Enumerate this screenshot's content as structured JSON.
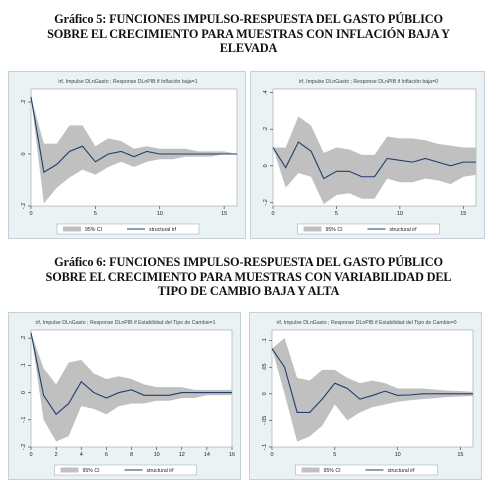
{
  "figure5": {
    "title_lines": [
      "Gráfico 5: FUNCIONES IMPULSO-RESPUESTA DEL GASTO PÚBLICO",
      "SOBRE EL CRECIMIENTO PARA MUESTRAS CON INFLACIÓN BAJA Y",
      "ELEVADA"
    ]
  },
  "figure6": {
    "title_lines": [
      "Gráfico 6: FUNCIONES IMPULSO-RESPUESTA DEL GASTO PÚBLICO",
      "SOBRE EL CRECIMIENTO PARA MUESTRAS CON VARIABILIDAD DEL",
      "TIPO DE CAMBIO BAJA Y ALTA"
    ]
  },
  "legend": {
    "ci_label": "95% CI",
    "irf_label": "structural irf"
  },
  "colors": {
    "panel_bg": "#eaf2f3",
    "plot_bg": "#ffffff",
    "band": "#c0c0c0",
    "line": "#1f3f6e"
  },
  "chart_data": [
    {
      "id": "p1",
      "type": "area",
      "title": "irf, Impulse DLnGasto ; Response DLnPIB if Inflación baja=1",
      "xlim": [
        0,
        16
      ],
      "ylim": [
        -0.2,
        0.25
      ],
      "xticks": [
        0,
        5,
        10,
        15
      ],
      "xtick_labels": [
        "0",
        "5",
        "10",
        "15"
      ],
      "yticks": [
        -0.2,
        0,
        0.2
      ],
      "ytick_labels": [
        "-.2",
        "0",
        ".2"
      ],
      "x": [
        0,
        1,
        2,
        3,
        4,
        5,
        6,
        7,
        8,
        9,
        10,
        11,
        12,
        13,
        14,
        15,
        16
      ],
      "series": [
        {
          "name": "95% CI",
          "lower": [
            0.22,
            -0.19,
            -0.13,
            -0.09,
            -0.06,
            -0.08,
            -0.05,
            -0.03,
            -0.05,
            -0.03,
            -0.02,
            -0.02,
            -0.01,
            -0.01,
            -0.01,
            0.0,
            0.0
          ],
          "upper": [
            0.22,
            0.04,
            0.04,
            0.11,
            0.11,
            0.03,
            0.06,
            0.05,
            0.02,
            0.03,
            0.02,
            0.02,
            0.02,
            0.01,
            0.01,
            0.01,
            0.0
          ]
        },
        {
          "name": "structural irf",
          "values": [
            0.22,
            -0.07,
            -0.04,
            0.01,
            0.03,
            -0.03,
            0.0,
            0.01,
            -0.01,
            0.01,
            0.0,
            0.0,
            0.0,
            0.0,
            0.0,
            0.0,
            0.0
          ]
        }
      ]
    },
    {
      "id": "p2",
      "type": "area",
      "title": "irf, Impulse DLnGasto ; Response DLnPIB if Inflación baja=0",
      "xlim": [
        0,
        16
      ],
      "ylim": [
        -0.22,
        0.42
      ],
      "xticks": [
        0,
        5,
        10,
        15
      ],
      "xtick_labels": [
        "0",
        "5",
        "10",
        "15"
      ],
      "yticks": [
        -0.2,
        0,
        0.2,
        0.4
      ],
      "ytick_labels": [
        "-.2",
        "0",
        ".2",
        ".4"
      ],
      "x": [
        0,
        1,
        2,
        3,
        4,
        5,
        6,
        7,
        8,
        9,
        10,
        11,
        12,
        13,
        14,
        15,
        16
      ],
      "series": [
        {
          "name": "95% CI",
          "lower": [
            0.1,
            -0.12,
            -0.04,
            -0.06,
            -0.21,
            -0.16,
            -0.15,
            -0.18,
            -0.18,
            -0.07,
            -0.09,
            -0.09,
            -0.07,
            -0.08,
            -0.1,
            -0.06,
            -0.05
          ],
          "upper": [
            0.1,
            0.1,
            0.27,
            0.22,
            0.07,
            0.1,
            0.09,
            0.06,
            0.06,
            0.16,
            0.15,
            0.15,
            0.14,
            0.12,
            0.11,
            0.1,
            0.1
          ]
        },
        {
          "name": "structural irf",
          "values": [
            0.1,
            -0.01,
            0.13,
            0.08,
            -0.07,
            -0.03,
            -0.03,
            -0.06,
            -0.06,
            0.04,
            0.03,
            0.02,
            0.04,
            0.02,
            0.0,
            0.02,
            0.02
          ]
        }
      ]
    },
    {
      "id": "p3",
      "type": "area",
      "title": "irf, Impulse DLnGasto ; Response DLnPIB if Estabilidad del Tipo de Cambio=1",
      "xlim": [
        0,
        16
      ],
      "ylim": [
        -0.2,
        0.23
      ],
      "xticks": [
        0,
        2,
        4,
        6,
        8,
        10,
        12,
        14,
        16
      ],
      "xtick_labels": [
        "0",
        "2",
        "4",
        "6",
        "8",
        "10",
        "12",
        "14",
        "16"
      ],
      "yticks": [
        -0.2,
        -0.1,
        0,
        0.1,
        0.2
      ],
      "ytick_labels": [
        "-.2",
        "-.1",
        "0",
        ".1",
        ".2"
      ],
      "x": [
        0,
        1,
        2,
        3,
        4,
        5,
        6,
        7,
        8,
        9,
        10,
        11,
        12,
        13,
        14,
        15,
        16
      ],
      "series": [
        {
          "name": "95% CI",
          "lower": [
            0.22,
            -0.1,
            -0.18,
            -0.16,
            -0.05,
            -0.06,
            -0.08,
            -0.05,
            -0.04,
            -0.04,
            -0.03,
            -0.03,
            -0.02,
            -0.02,
            -0.01,
            -0.01,
            -0.01
          ],
          "upper": [
            0.22,
            0.09,
            0.03,
            0.11,
            0.12,
            0.07,
            0.05,
            0.06,
            0.05,
            0.03,
            0.02,
            0.02,
            0.02,
            0.01,
            0.01,
            0.01,
            0.01
          ]
        },
        {
          "name": "structural irf",
          "values": [
            0.22,
            -0.01,
            -0.08,
            -0.04,
            0.04,
            0.0,
            -0.02,
            0.0,
            0.01,
            -0.01,
            -0.01,
            -0.01,
            0.0,
            0.0,
            0.0,
            0.0,
            0.0
          ]
        }
      ]
    },
    {
      "id": "p4",
      "type": "area",
      "title": "irf, Impulse DLnGasto ; Response DLnPIB if Estabilidad del Tipo de Cambio=0",
      "xlim": [
        0,
        16
      ],
      "ylim": [
        -0.1,
        0.12
      ],
      "xticks": [
        0,
        5,
        10,
        15
      ],
      "xtick_labels": [
        "0",
        "5",
        "10",
        "15"
      ],
      "yticks": [
        -0.1,
        -0.05,
        0,
        0.05,
        0.1
      ],
      "ytick_labels": [
        "-.1",
        "-.05",
        "0",
        ".05",
        ".1"
      ],
      "x": [
        0,
        1,
        2,
        3,
        4,
        5,
        6,
        7,
        8,
        9,
        10,
        11,
        12,
        13,
        14,
        15,
        16
      ],
      "series": [
        {
          "name": "95% CI",
          "lower": [
            0.085,
            0.0,
            -0.09,
            -0.08,
            -0.06,
            -0.02,
            -0.05,
            -0.035,
            -0.025,
            -0.02,
            -0.015,
            -0.012,
            -0.01,
            -0.008,
            -0.006,
            -0.005,
            -0.004
          ],
          "upper": [
            0.085,
            0.105,
            0.03,
            0.025,
            0.045,
            0.045,
            0.03,
            0.02,
            0.025,
            0.02,
            0.01,
            0.01,
            0.01,
            0.008,
            0.006,
            0.005,
            0.004
          ]
        },
        {
          "name": "structural irf",
          "values": [
            0.085,
            0.05,
            -0.035,
            -0.035,
            -0.01,
            0.02,
            0.01,
            -0.01,
            -0.003,
            0.005,
            -0.003,
            -0.002,
            0.0,
            0.0,
            0.0,
            0.0,
            0.0
          ]
        }
      ]
    }
  ]
}
